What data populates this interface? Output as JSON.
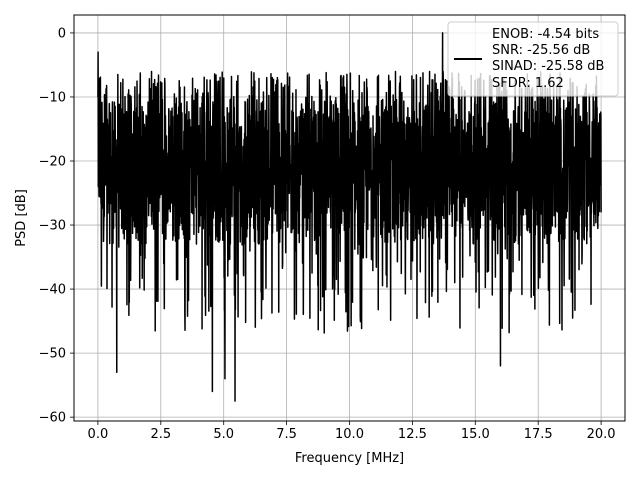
{
  "chart_data": {
    "type": "line",
    "title": "",
    "xlabel": "Frequency [MHz]",
    "ylabel": "PSD [dB]",
    "xlim": [
      -0.95,
      20.95
    ],
    "ylim": [
      -60.6,
      2.8
    ],
    "x_ticks": [
      0.0,
      2.5,
      5.0,
      7.5,
      10.0,
      12.5,
      15.0,
      17.5,
      20.0
    ],
    "x_tick_labels": [
      "0.0",
      "2.5",
      "5.0",
      "7.5",
      "10.0",
      "12.5",
      "15.0",
      "17.5",
      "20.0"
    ],
    "y_ticks": [
      0,
      -10,
      -20,
      -30,
      -40,
      -50,
      -60
    ],
    "y_tick_labels": [
      "0",
      "−10",
      "−20",
      "−30",
      "−40",
      "−50",
      "−60"
    ],
    "grid": true,
    "legend_position": "top-right",
    "series": [
      {
        "color": "#000000",
        "x_range": [
          0,
          20
        ],
        "noise_band": {
          "typical_low": -33,
          "typical_high": -13,
          "occasional_min": -57.5,
          "occasional_max": -6
        },
        "peaks": [
          {
            "x": 0.0,
            "y": -3.0
          },
          {
            "x": 13.7,
            "y": 0.0
          }
        ],
        "deep_minima": [
          {
            "x": 0.75,
            "y": -53
          },
          {
            "x": 4.55,
            "y": -56
          },
          {
            "x": 5.05,
            "y": -54
          },
          {
            "x": 5.45,
            "y": -57.5
          },
          {
            "x": 16.0,
            "y": -52
          }
        ]
      }
    ],
    "legend_lines": [
      "ENOB: -4.54 bits",
      "SNR: -25.56 dB",
      "SINAD: -25.58 dB",
      "SFDR: 1.62"
    ]
  }
}
